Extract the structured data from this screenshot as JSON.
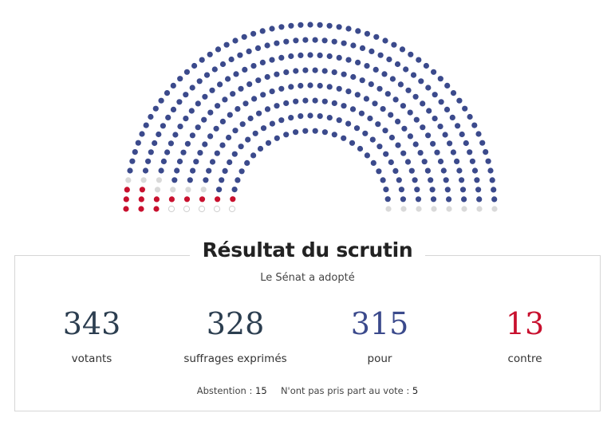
{
  "chart_data": {
    "type": "parliament",
    "total_seats": 348,
    "rows": 8,
    "groups": [
      {
        "name": "pour",
        "count": 315,
        "color": "#3b4a8c"
      },
      {
        "name": "contre",
        "count": 13,
        "color": "#c8102e"
      },
      {
        "name": "abstention",
        "count": 15,
        "color": "#d9d9d9"
      },
      {
        "name": "non_votant",
        "count": 5,
        "color": "#ffffff"
      }
    ]
  },
  "result": {
    "title": "Résultat du scrutin",
    "subtitle": "Le Sénat a adopté",
    "stats": [
      {
        "value": "343",
        "label": "votants"
      },
      {
        "value": "328",
        "label": "suffrages exprimés"
      },
      {
        "value": "315",
        "label": "pour"
      },
      {
        "value": "13",
        "label": "contre"
      }
    ],
    "abstention_label": "Abstention :",
    "abstention_value": "15",
    "nonvote_label": "N'ont pas pris part au vote :",
    "nonvote_value": "5"
  },
  "colors": {
    "pour": "#3b4a8c",
    "contre": "#c8102e",
    "abstention": "#d9d9d9",
    "non_votant_stroke": "#cfcfcf"
  }
}
